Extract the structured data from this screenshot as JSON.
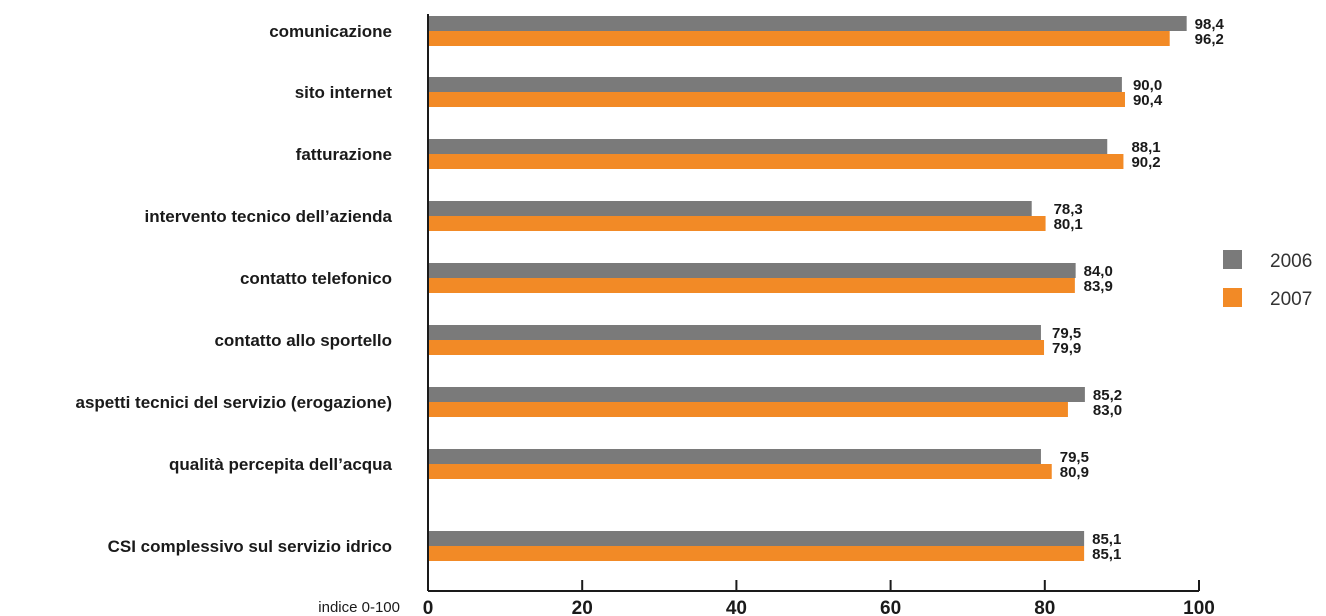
{
  "chart_data": {
    "type": "bar",
    "orientation": "horizontal",
    "categories": [
      "comunicazione",
      "sito internet",
      "fatturazione",
      "intervento tecnico dell’azienda",
      "contatto telefonico",
      "contatto allo sportello",
      "aspetti tecnici del servizio (erogazione)",
      "qualità percepita dell’acqua",
      "CSI complessivo sul servizio idrico"
    ],
    "series": [
      {
        "name": "2006",
        "color": "#7a7a7a",
        "values": [
          98.4,
          90.0,
          88.1,
          78.3,
          84.0,
          79.5,
          85.2,
          79.5,
          85.1
        ],
        "labels": [
          "98,4",
          "90,0",
          "88,1",
          "78,3",
          "84,0",
          "79,5",
          "85,2",
          "79,5",
          "85,1"
        ]
      },
      {
        "name": "2007",
        "color": "#f28a26",
        "values": [
          96.2,
          90.4,
          90.2,
          80.1,
          83.9,
          79.9,
          83.0,
          80.9,
          85.1
        ],
        "labels": [
          "96,2",
          "90,4",
          "90,2",
          "80,1",
          "83,9",
          "79,9",
          "83,0",
          "80,9",
          "85,1"
        ]
      }
    ],
    "xlim": [
      0,
      100
    ],
    "xticks": [
      "0",
      "20",
      "40",
      "60",
      "80",
      "100"
    ],
    "xlabel": "indice 0-100",
    "legend": "right",
    "grid": false
  }
}
